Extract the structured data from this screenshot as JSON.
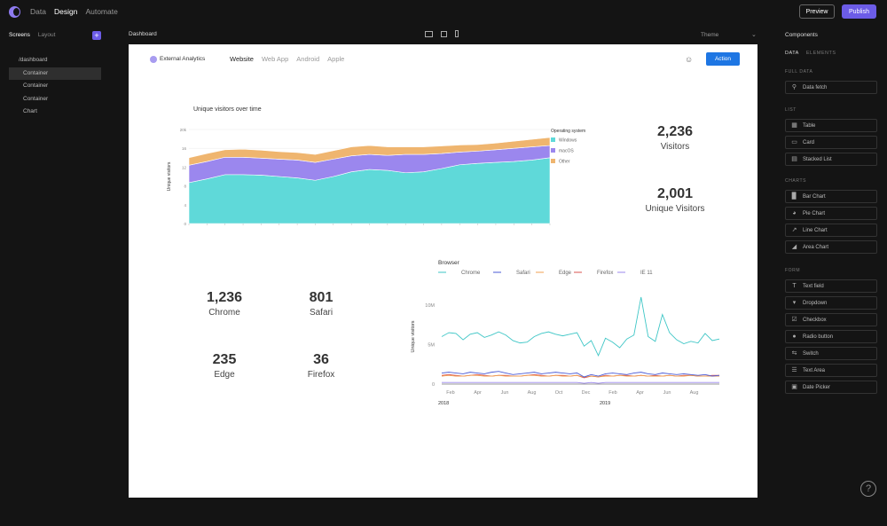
{
  "topbar": {
    "nav": [
      "Data",
      "Design",
      "Automate"
    ],
    "active": "Design",
    "preview_label": "Preview",
    "publish_label": "Publish"
  },
  "left_panel": {
    "tabs": [
      "Screens",
      "Layout"
    ],
    "active_tab": "Screens",
    "add_label": "+",
    "tree": [
      {
        "label": "/dashboard",
        "level": 0
      },
      {
        "label": "Container",
        "level": 1,
        "selected": true
      },
      {
        "label": "Container",
        "level": 1
      },
      {
        "label": "Container",
        "level": 1
      },
      {
        "label": "Chart",
        "level": 1
      }
    ]
  },
  "canvas_header": {
    "title": "Dashboard",
    "theme_label": "Theme"
  },
  "app": {
    "brand": "External Analytics",
    "tabs": [
      "Website",
      "Web App",
      "Android",
      "Apple"
    ],
    "active_tab": "Website",
    "action_label": "Action"
  },
  "area_chart": {
    "title": "Unique visitors over time",
    "ylabel": "Unique visitors",
    "legend_title": "Operating system",
    "legend": [
      {
        "name": "Windows",
        "color": "#5fd9d9"
      },
      {
        "name": "macOS",
        "color": "#9b87ee"
      },
      {
        "name": "Other",
        "color": "#efb56f"
      }
    ]
  },
  "stats_top": [
    {
      "value": "2,236",
      "label": "Visitors"
    },
    {
      "value": "2,001",
      "label": "Unique Visitors"
    }
  ],
  "stats_browser": [
    {
      "value": "1,236",
      "label": "Chrome"
    },
    {
      "value": "801",
      "label": "Safari"
    },
    {
      "value": "235",
      "label": "Edge"
    },
    {
      "value": "36",
      "label": "Firefox"
    }
  ],
  "line_chart": {
    "legend_title": "Browser",
    "ylabel": "Unique visitors",
    "legend": [
      {
        "name": "Chrome",
        "color": "#3ec6c6"
      },
      {
        "name": "Safari",
        "color": "#4a5ad6"
      },
      {
        "name": "Edge",
        "color": "#f0a050"
      },
      {
        "name": "Firefox",
        "color": "#d9534f"
      },
      {
        "name": "IE 11",
        "color": "#9b87ee"
      }
    ],
    "y_ticks": [
      "10M",
      "5M",
      "0"
    ],
    "x_ticks": [
      "Feb",
      "Apr",
      "Jun",
      "Aug",
      "Oct",
      "Dec",
      "Feb",
      "Apr",
      "Jun",
      "Aug"
    ],
    "year_labels": [
      "2018",
      "2019"
    ]
  },
  "right_panel": {
    "title": "Components",
    "tabs": [
      "DATA",
      "ELEMENTS"
    ],
    "active_tab": "DATA",
    "sections": [
      {
        "title": "FULL DATA",
        "items": [
          {
            "label": "Data fetch",
            "icon": "database-icon"
          }
        ]
      },
      {
        "title": "LIST",
        "items": [
          {
            "label": "Table",
            "icon": "table-icon"
          },
          {
            "label": "Card",
            "icon": "card-icon"
          },
          {
            "label": "Stacked List",
            "icon": "list-icon"
          }
        ]
      },
      {
        "title": "CHARTS",
        "items": [
          {
            "label": "Bar Chart",
            "icon": "bar-chart-icon"
          },
          {
            "label": "Pie Chart",
            "icon": "pie-chart-icon"
          },
          {
            "label": "Line Chart",
            "icon": "line-chart-icon"
          },
          {
            "label": "Area Chart",
            "icon": "area-chart-icon"
          }
        ]
      },
      {
        "title": "FORM",
        "items": [
          {
            "label": "Text field",
            "icon": "text-field-icon"
          },
          {
            "label": "Dropdown",
            "icon": "dropdown-icon"
          },
          {
            "label": "Checkbox",
            "icon": "checkbox-icon"
          },
          {
            "label": "Radio button",
            "icon": "radio-icon"
          },
          {
            "label": "Switch",
            "icon": "switch-icon"
          },
          {
            "label": "Text Area",
            "icon": "text-area-icon"
          },
          {
            "label": "Date Picker",
            "icon": "date-picker-icon"
          }
        ]
      }
    ]
  },
  "help_label": "?",
  "chart_data": [
    {
      "type": "area",
      "title": "Unique visitors over time",
      "ylabel": "Unique visitors",
      "ylim": [
        0,
        20
      ],
      "y_ticks": [
        "20k",
        "16",
        "12",
        "8",
        "4",
        "0"
      ],
      "stacked": true,
      "x": [
        1,
        2,
        3,
        4,
        5,
        6,
        7,
        8,
        9,
        10,
        11,
        12,
        13,
        14,
        15,
        16,
        17,
        18,
        19,
        20,
        21
      ],
      "series": [
        {
          "name": "Windows",
          "color": "#5fd9d9",
          "values": [
            8.7,
            9.5,
            10.4,
            10.4,
            10.3,
            10.0,
            9.7,
            9.2,
            10.0,
            11.0,
            11.5,
            11.3,
            10.8,
            11.0,
            11.7,
            12.5,
            12.8,
            13.0,
            13.2,
            13.5,
            14.0
          ]
        },
        {
          "name": "macOS",
          "color": "#9b87ee",
          "values": [
            3.7,
            3.7,
            3.7,
            3.7,
            3.6,
            3.7,
            3.8,
            3.8,
            3.7,
            3.4,
            3.2,
            3.2,
            3.9,
            3.7,
            3.2,
            2.7,
            2.6,
            2.7,
            2.8,
            2.8,
            2.6
          ]
        },
        {
          "name": "Other",
          "color": "#efb56f",
          "values": [
            1.6,
            1.7,
            1.6,
            1.7,
            1.7,
            1.6,
            1.6,
            1.7,
            1.8,
            1.9,
            1.9,
            1.8,
            1.6,
            1.6,
            1.6,
            1.5,
            1.4,
            1.4,
            1.5,
            1.6,
            1.7
          ]
        }
      ]
    },
    {
      "type": "line",
      "title": "",
      "legend_title": "Browser",
      "ylabel": "Unique visitors",
      "ylim": [
        0,
        12
      ],
      "y_ticks": [
        "10M",
        "5M",
        "0"
      ],
      "x_ticks": [
        "Feb",
        "Apr",
        "Jun",
        "Aug",
        "Oct",
        "Dec",
        "Feb",
        "Apr",
        "Jun",
        "Aug"
      ],
      "x": [
        1,
        2,
        3,
        4,
        5,
        6,
        7,
        8,
        9,
        10,
        11,
        12,
        13,
        14,
        15,
        16,
        17,
        18,
        19,
        20,
        21,
        22,
        23,
        24,
        25,
        26,
        27,
        28,
        29,
        30,
        31,
        32,
        33,
        34,
        35,
        36,
        37,
        38,
        39,
        40
      ],
      "series": [
        {
          "name": "Chrome",
          "color": "#3ec6c6",
          "values": [
            6.0,
            6.5,
            6.4,
            5.6,
            6.3,
            6.5,
            5.9,
            6.2,
            6.6,
            6.2,
            5.5,
            5.2,
            5.3,
            6.0,
            6.4,
            6.6,
            6.3,
            6.1,
            6.3,
            6.5,
            4.8,
            5.5,
            3.6,
            5.8,
            5.3,
            4.6,
            5.7,
            6.2,
            11.0,
            6.0,
            5.4,
            8.8,
            6.5,
            5.6,
            5.1,
            5.4,
            5.2,
            6.4,
            5.5,
            5.7
          ]
        },
        {
          "name": "Safari",
          "color": "#4a5ad6",
          "values": [
            1.4,
            1.5,
            1.4,
            1.3,
            1.5,
            1.4,
            1.3,
            1.5,
            1.6,
            1.4,
            1.2,
            1.3,
            1.4,
            1.5,
            1.3,
            1.4,
            1.5,
            1.4,
            1.3,
            1.4,
            0.9,
            1.2,
            1.0,
            1.3,
            1.4,
            1.3,
            1.2,
            1.4,
            1.5,
            1.3,
            1.2,
            1.4,
            1.3,
            1.2,
            1.3,
            1.2,
            1.1,
            1.2,
            1.0,
            1.1
          ]
        },
        {
          "name": "Edge",
          "color": "#f0a050",
          "values": [
            1.0,
            1.1,
            1.0,
            1.0,
            1.1,
            1.1,
            1.0,
            1.0,
            1.1,
            1.0,
            1.0,
            1.0,
            1.1,
            1.1,
            1.0,
            1.0,
            1.1,
            1.0,
            1.0,
            1.1,
            0.9,
            1.0,
            0.9,
            1.0,
            1.0,
            1.1,
            1.0,
            1.0,
            1.1,
            1.0,
            1.0,
            1.0,
            1.1,
            1.0,
            1.0,
            1.1,
            1.0,
            1.0,
            1.0,
            1.0
          ]
        },
        {
          "name": "Firefox",
          "color": "#d9534f",
          "values": [
            1.1,
            1.2,
            1.1,
            1.0,
            1.1,
            1.2,
            1.1,
            1.0,
            1.1,
            1.1,
            1.0,
            1.0,
            1.1,
            1.2,
            1.1,
            1.0,
            1.1,
            1.1,
            1.0,
            1.1,
            0.8,
            1.0,
            0.9,
            1.1,
            1.0,
            1.1,
            1.1,
            1.0,
            1.1,
            1.0,
            1.1,
            1.0,
            1.1,
            1.0,
            1.1,
            1.1,
            1.0,
            1.0,
            1.1,
            1.1
          ]
        },
        {
          "name": "IE 11",
          "color": "#9b87ee",
          "values": [
            0.2,
            0.2,
            0.2,
            0.2,
            0.2,
            0.2,
            0.2,
            0.2,
            0.2,
            0.2,
            0.2,
            0.2,
            0.2,
            0.2,
            0.2,
            0.2,
            0.2,
            0.2,
            0.2,
            0.2,
            0.1,
            0.2,
            0.1,
            0.2,
            0.2,
            0.2,
            0.2,
            0.2,
            0.2,
            0.2,
            0.2,
            0.2,
            0.2,
            0.2,
            0.2,
            0.2,
            0.2,
            0.2,
            0.2,
            0.2
          ]
        }
      ]
    }
  ]
}
